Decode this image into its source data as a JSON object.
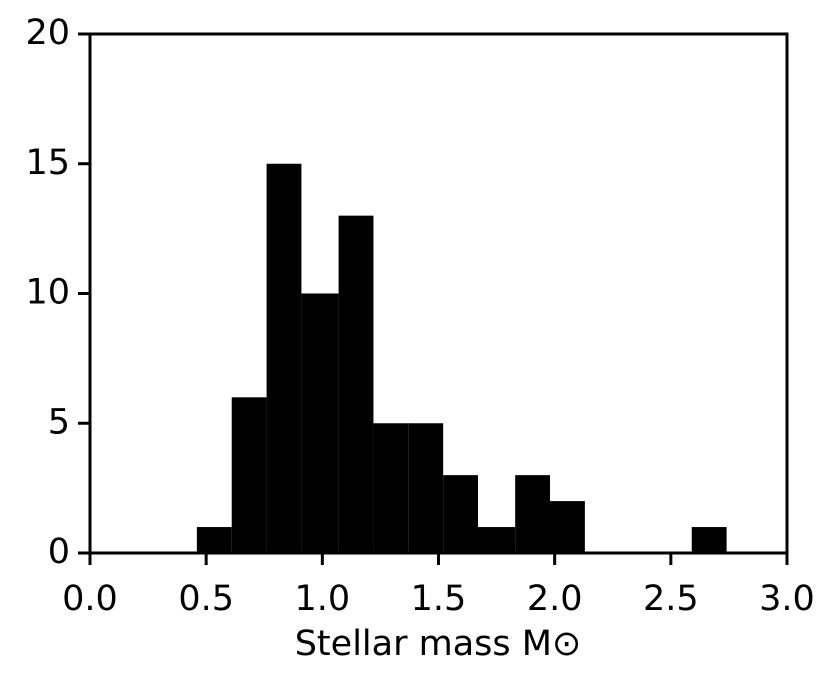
{
  "chart_data": {
    "type": "histogram",
    "xlabel": "Stellar mass M⊙",
    "bins": [
      0.46,
      0.61,
      0.76,
      0.91,
      1.07,
      1.22,
      1.37,
      1.52,
      1.67,
      1.83,
      1.98,
      2.13,
      2.28,
      2.44,
      2.59,
      2.74
    ],
    "values": [
      1,
      6,
      15,
      10,
      13,
      5,
      5,
      3,
      1,
      3,
      2,
      0,
      0,
      0,
      1
    ],
    "color": "#000000",
    "xlim": [
      0,
      3
    ],
    "xticks": [
      {
        "value": 0,
        "label": "0.0"
      },
      {
        "value": 0.5,
        "label": "0.5"
      },
      {
        "value": 1,
        "label": "1.0"
      },
      {
        "value": 1.5,
        "label": "1.5"
      },
      {
        "value": 2,
        "label": "2.0"
      },
      {
        "value": 2.5,
        "label": "2.5"
      },
      {
        "value": 3,
        "label": "3.0"
      }
    ],
    "ylim": [
      0,
      20
    ],
    "yticks": [
      0,
      5,
      10,
      15,
      20
    ],
    "grid": false
  }
}
